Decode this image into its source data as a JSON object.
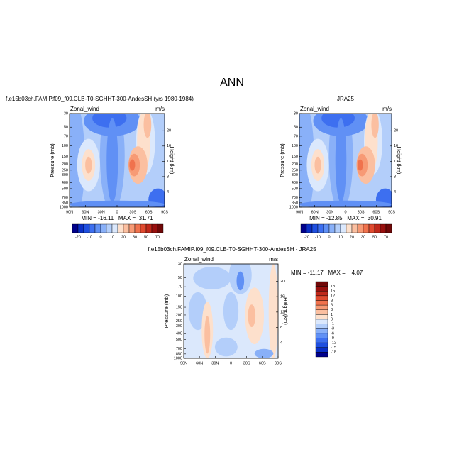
{
  "title": "ANN",
  "chart_data": [
    {
      "type": "contour",
      "title": "f.e15b03ch.FAMIP.f09_f09.CLB-T0-SGHHT-300-AndesSH (yrs 1980-1984)",
      "left_label": "Zonal_wind",
      "right_label": "m/s",
      "y_label": "Pressure (mb)",
      "y2_label": "Height (km)",
      "xlim": [
        90,
        -90
      ],
      "xticks": [
        {
          "value": 90,
          "label": "90N"
        },
        {
          "value": 60,
          "label": "60N"
        },
        {
          "value": 30,
          "label": "30N"
        },
        0,
        {
          "value": -30,
          "label": "30S"
        },
        {
          "value": -60,
          "label": "60S"
        },
        {
          "value": -90,
          "label": "90S"
        }
      ],
      "ylim": [
        1000,
        30
      ],
      "log_y": true,
      "yticks": [
        30,
        50,
        70,
        100,
        150,
        200,
        250,
        300,
        400,
        500,
        700,
        850,
        1000
      ],
      "y2lim": [
        0,
        24.5
      ],
      "y2ticks": [
        4,
        8,
        12,
        16,
        20
      ],
      "stats": "MIN = -16.11   MAX =  31.71",
      "colorbar": {
        "orientation": "horizontal",
        "labels": [
          -20,
          -10,
          0,
          10,
          20,
          30,
          50,
          70
        ],
        "colors": [
          "#00008b",
          "#0a2fc7",
          "#1f4fe0",
          "#3d6ff0",
          "#6090f5",
          "#89b0f8",
          "#b3cefa",
          "#dbe8fc",
          "#fde0cc",
          "#fbbfa0",
          "#f79a75",
          "#f0724d",
          "#e04a2f",
          "#c0281a",
          "#98100e",
          "#700808"
        ]
      }
    },
    {
      "type": "contour",
      "title": "JRA25",
      "left_label": "Zonal_wind",
      "right_label": "m/s",
      "y_label": "Pressure (mb)",
      "y2_label": "Height (km)",
      "xlim": [
        90,
        -90
      ],
      "xticks": [
        {
          "value": 90,
          "label": "90N"
        },
        {
          "value": 60,
          "label": "60N"
        },
        {
          "value": 30,
          "label": "30N"
        },
        0,
        {
          "value": -30,
          "label": "30S"
        },
        {
          "value": -60,
          "label": "60S"
        },
        {
          "value": -90,
          "label": "90S"
        }
      ],
      "ylim": [
        1000,
        30
      ],
      "log_y": true,
      "yticks": [
        30,
        50,
        70,
        100,
        150,
        200,
        250,
        300,
        400,
        500,
        700,
        850,
        1000
      ],
      "y2lim": [
        0,
        24.5
      ],
      "y2ticks": [
        4,
        8,
        12,
        16,
        20
      ],
      "stats": "MIN = -12.85   MAX =  30.91",
      "colorbar": {
        "orientation": "horizontal",
        "labels": [
          -20,
          -10,
          0,
          10,
          20,
          30,
          50,
          70
        ],
        "colors": [
          "#00008b",
          "#0a2fc7",
          "#1f4fe0",
          "#3d6ff0",
          "#6090f5",
          "#89b0f8",
          "#b3cefa",
          "#dbe8fc",
          "#fde0cc",
          "#fbbfa0",
          "#f79a75",
          "#f0724d",
          "#e04a2f",
          "#c0281a",
          "#98100e",
          "#700808"
        ]
      }
    },
    {
      "type": "contour",
      "title": "f.e15b03ch.FAMIP.f09_f09.CLB-T0-SGHHT-300-AndesSH - JRA25",
      "left_label": "Zonal_wind",
      "right_label": "m/s",
      "y_label": "Pressure (mb)",
      "y2_label": "Height (km)",
      "xlim": [
        90,
        -90
      ],
      "xticks": [
        {
          "value": 90,
          "label": "90N"
        },
        {
          "value": 60,
          "label": "60N"
        },
        {
          "value": 30,
          "label": "30N"
        },
        0,
        {
          "value": -30,
          "label": "30S"
        },
        {
          "value": -60,
          "label": "60S"
        },
        {
          "value": -90,
          "label": "90S"
        }
      ],
      "ylim": [
        1000,
        30
      ],
      "log_y": true,
      "yticks": [
        30,
        50,
        70,
        100,
        150,
        200,
        250,
        300,
        400,
        500,
        700,
        850,
        1000
      ],
      "y2lim": [
        0,
        24.5
      ],
      "y2ticks": [
        4,
        8,
        12,
        16,
        20
      ],
      "stats": "MIN = -11.17   MAX =    4.07",
      "colorbar": {
        "orientation": "vertical",
        "labels": [
          18,
          15,
          12,
          9,
          6,
          3,
          1,
          0,
          -1,
          -3,
          -6,
          -9,
          -12,
          -15,
          -18
        ],
        "colors": [
          "#700808",
          "#98100e",
          "#c0281a",
          "#e04a2f",
          "#f0724d",
          "#f79a75",
          "#fbbfa0",
          "#fde0cc",
          "#dbe8fc",
          "#b3cefa",
          "#89b0f8",
          "#6090f5",
          "#3d6ff0",
          "#1f4fe0",
          "#0a2fc7",
          "#00008b"
        ]
      }
    }
  ]
}
